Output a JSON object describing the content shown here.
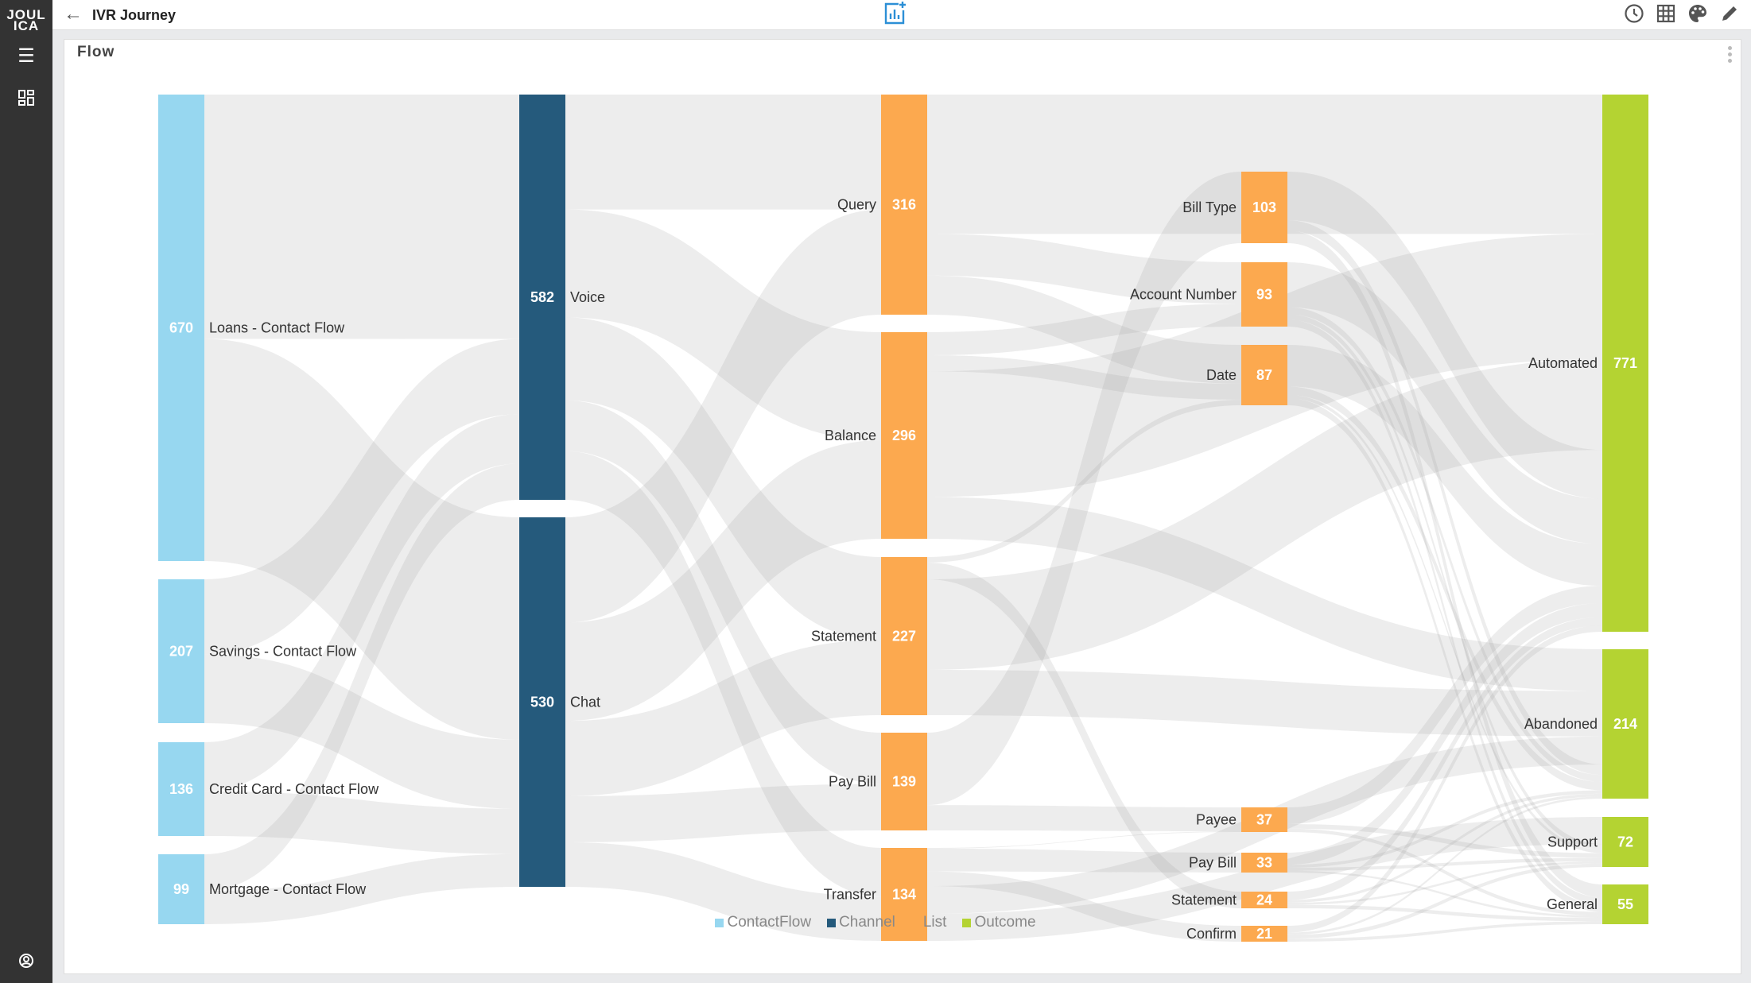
{
  "app": {
    "logo_text": "JOULICA",
    "title": "IVR Journey"
  },
  "sidebar": {
    "icons": [
      "menu-icon",
      "dashboard-icon",
      "user-account-icon"
    ]
  },
  "header_icons": [
    "add-chart-icon",
    "clock-icon",
    "grid-icon",
    "palette-icon",
    "pencil-icon"
  ],
  "panel": {
    "title": "Flow"
  },
  "chart_data": {
    "type": "sankey",
    "legend_position": "bottom",
    "legend": [
      {
        "label": "ContactFlow",
        "color": "#97d7f0"
      },
      {
        "label": "Channel",
        "color": "#255a7c"
      },
      {
        "label": "List",
        "color": "#fca94f"
      },
      {
        "label": "Outcome",
        "color": "#b4d332"
      }
    ],
    "nodes": [
      {
        "id": "loans",
        "category": "ContactFlow",
        "label": "Loans - Contact Flow",
        "value": 670
      },
      {
        "id": "savings",
        "category": "ContactFlow",
        "label": "Savings - Contact Flow",
        "value": 207
      },
      {
        "id": "credit",
        "category": "ContactFlow",
        "label": "Credit Card - Contact Flow",
        "value": 136
      },
      {
        "id": "mortgage",
        "category": "ContactFlow",
        "label": "Mortgage - Contact Flow",
        "value": 99
      },
      {
        "id": "voice",
        "category": "Channel",
        "label": "Voice",
        "value": 582
      },
      {
        "id": "chat",
        "category": "Channel",
        "label": "Chat",
        "value": 530
      },
      {
        "id": "query",
        "category": "List",
        "label": "Query",
        "value": 316
      },
      {
        "id": "balance",
        "category": "List",
        "label": "Balance",
        "value": 296
      },
      {
        "id": "statement",
        "category": "List",
        "label": "Statement",
        "value": 227
      },
      {
        "id": "paybill",
        "category": "List",
        "label": "Pay Bill",
        "value": 139
      },
      {
        "id": "transfer",
        "category": "List",
        "label": "Transfer",
        "value": 134
      },
      {
        "id": "billtype",
        "category": "List",
        "label": "Bill Type",
        "value": 103
      },
      {
        "id": "accnum",
        "category": "List",
        "label": "Account Number",
        "value": 93
      },
      {
        "id": "date",
        "category": "List",
        "label": "Date",
        "value": 87
      },
      {
        "id": "payee",
        "category": "List",
        "label": "Payee",
        "value": 37
      },
      {
        "id": "paybill2",
        "category": "List",
        "label": "Pay Bill",
        "value": 33
      },
      {
        "id": "statement2",
        "category": "List",
        "label": "Statement",
        "value": 24
      },
      {
        "id": "confirm",
        "category": "List",
        "label": "Confirm",
        "value": 21
      },
      {
        "id": "automated",
        "category": "Outcome",
        "label": "Automated",
        "value": 771
      },
      {
        "id": "abandoned",
        "category": "Outcome",
        "label": "Abandoned",
        "value": 214
      },
      {
        "id": "support",
        "category": "Outcome",
        "label": "Support",
        "value": 72
      },
      {
        "id": "general",
        "category": "Outcome",
        "label": "General",
        "value": 55
      }
    ],
    "links_estimated": [
      [
        "loans",
        "voice",
        351
      ],
      [
        "loans",
        "chat",
        319
      ],
      [
        "savings",
        "voice",
        108
      ],
      [
        "savings",
        "chat",
        99
      ],
      [
        "credit",
        "voice",
        71
      ],
      [
        "credit",
        "chat",
        65
      ],
      [
        "mortgage",
        "voice",
        52
      ],
      [
        "mortgage",
        "chat",
        47
      ],
      [
        "voice",
        "query",
        165
      ],
      [
        "voice",
        "balance",
        155
      ],
      [
        "voice",
        "statement",
        119
      ],
      [
        "voice",
        "paybill",
        73
      ],
      [
        "voice",
        "transfer",
        70
      ],
      [
        "chat",
        "query",
        151
      ],
      [
        "chat",
        "balance",
        141
      ],
      [
        "chat",
        "statement",
        108
      ],
      [
        "chat",
        "paybill",
        66
      ],
      [
        "chat",
        "transfer",
        64
      ],
      [
        "query",
        "automated",
        200
      ],
      [
        "query",
        "accnum",
        60
      ],
      [
        "query",
        "date",
        56
      ],
      [
        "balance",
        "accnum",
        33
      ],
      [
        "balance",
        "date",
        23
      ],
      [
        "balance",
        "automated",
        180
      ],
      [
        "balance",
        "abandoned",
        60
      ],
      [
        "statement",
        "date",
        8
      ],
      [
        "statement",
        "statement2",
        24
      ],
      [
        "statement",
        "automated",
        130
      ],
      [
        "statement",
        "abandoned",
        65
      ],
      [
        "paybill",
        "billtype",
        103
      ],
      [
        "paybill",
        "payee",
        36
      ],
      [
        "transfer",
        "payee",
        1
      ],
      [
        "transfer",
        "paybill2",
        33
      ],
      [
        "transfer",
        "confirm",
        21
      ],
      [
        "transfer",
        "abandoned",
        40
      ],
      [
        "transfer",
        "support",
        39
      ],
      [
        "billtype",
        "automated",
        70
      ],
      [
        "billtype",
        "abandoned",
        15
      ],
      [
        "billtype",
        "general",
        18
      ],
      [
        "accnum",
        "automated",
        65
      ],
      [
        "accnum",
        "abandoned",
        10
      ],
      [
        "accnum",
        "support",
        8
      ],
      [
        "accnum",
        "general",
        10
      ],
      [
        "date",
        "automated",
        60
      ],
      [
        "date",
        "abandoned",
        12
      ],
      [
        "date",
        "support",
        5
      ],
      [
        "date",
        "general",
        10
      ],
      [
        "payee",
        "automated",
        25
      ],
      [
        "payee",
        "support",
        7
      ],
      [
        "payee",
        "general",
        5
      ],
      [
        "paybill2",
        "automated",
        20
      ],
      [
        "paybill2",
        "abandoned",
        5
      ],
      [
        "paybill2",
        "support",
        5
      ],
      [
        "paybill2",
        "general",
        3
      ],
      [
        "statement2",
        "automated",
        12
      ],
      [
        "statement2",
        "abandoned",
        4
      ],
      [
        "statement2",
        "support",
        3
      ],
      [
        "statement2",
        "general",
        5
      ],
      [
        "confirm",
        "automated",
        9
      ],
      [
        "confirm",
        "abandoned",
        3
      ],
      [
        "confirm",
        "support",
        5
      ],
      [
        "confirm",
        "general",
        4
      ]
    ]
  }
}
